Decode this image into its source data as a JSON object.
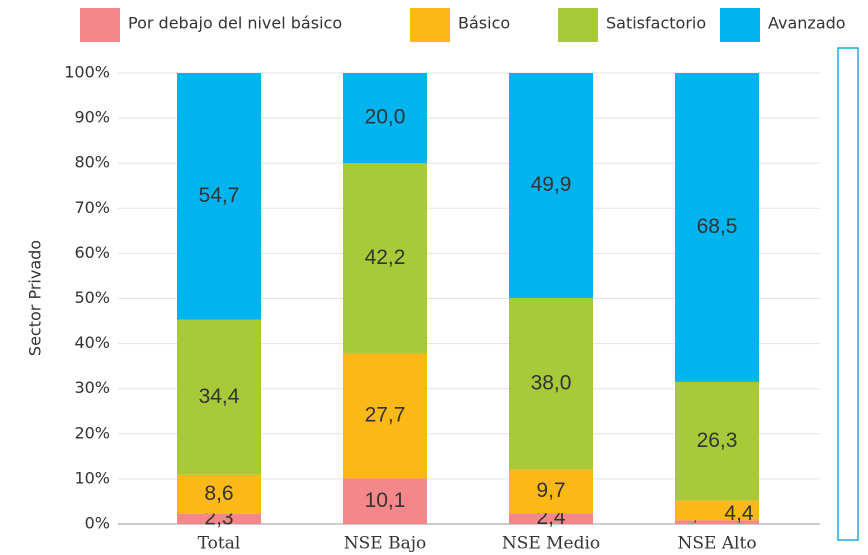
{
  "chart_data": {
    "type": "stacked_bar",
    "y_label": "Sector Privado",
    "categories": [
      "Total",
      "NSE Bajo",
      "NSE Medio",
      "NSE Alto"
    ],
    "series": [
      {
        "name": "Por debajo del nivel básico",
        "color": "#f4878a",
        "values": [
          2.3,
          10.1,
          2.4,
          0.8
        ],
        "value_labels": [
          "2,3",
          "10,1",
          "2,4",
          "0,8"
        ]
      },
      {
        "name": "Básico",
        "color": "#fbb817",
        "values": [
          8.6,
          27.7,
          9.7,
          4.4
        ],
        "value_labels": [
          "8,6",
          "27,7",
          "9,7",
          "4,4"
        ]
      },
      {
        "name": "Satisfactorio",
        "color": "#a8c93a",
        "values": [
          34.4,
          42.2,
          38.0,
          26.3
        ],
        "value_labels": [
          "34,4",
          "42,2",
          "38,0",
          "26,3"
        ]
      },
      {
        "name": "Avanzado",
        "color": "#00b4ef",
        "values": [
          54.7,
          20.0,
          49.9,
          68.5
        ],
        "value_labels": [
          "54,7",
          "20,0",
          "49,9",
          "68,5"
        ]
      }
    ],
    "ylim": [
      0,
      100
    ],
    "yticks": [
      {
        "value": 0,
        "label": "0%"
      },
      {
        "value": 10,
        "label": "10%"
      },
      {
        "value": 20,
        "label": "20%"
      },
      {
        "value": 30,
        "label": "30%"
      },
      {
        "value": 40,
        "label": "40%"
      },
      {
        "value": 50,
        "label": "50%"
      },
      {
        "value": 60,
        "label": "60%"
      },
      {
        "value": 70,
        "label": "70%"
      },
      {
        "value": 80,
        "label": "80%"
      },
      {
        "value": 90,
        "label": "90%"
      },
      {
        "value": 100,
        "label": "100%"
      }
    ],
    "grid": true
  }
}
